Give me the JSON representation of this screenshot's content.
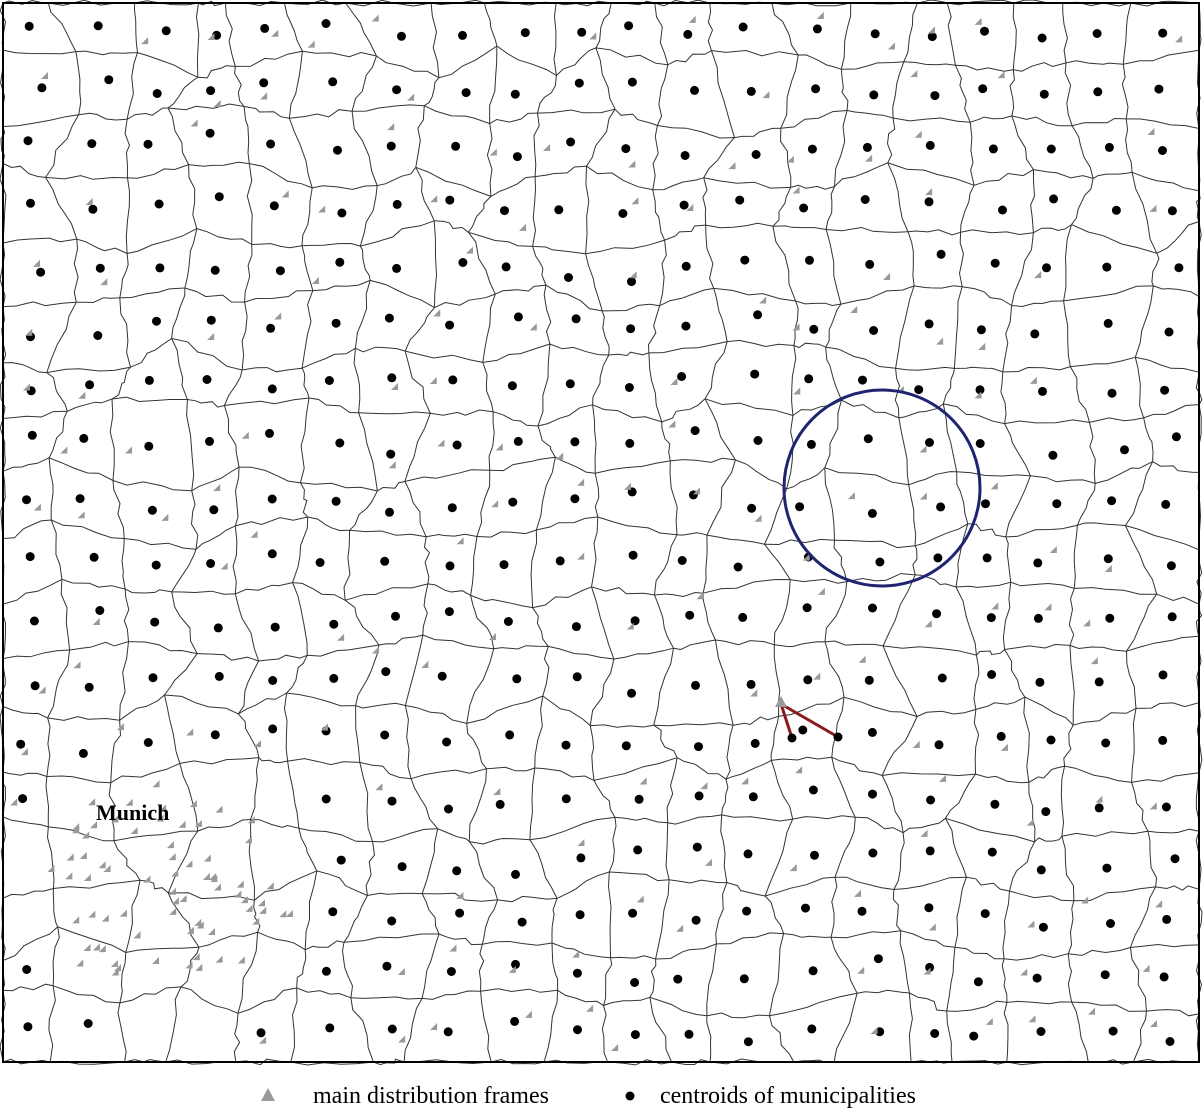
{
  "map": {
    "label": "Munich",
    "legend": [
      "main distribution frames",
      "centroids of municipalities"
    ]
  }
}
